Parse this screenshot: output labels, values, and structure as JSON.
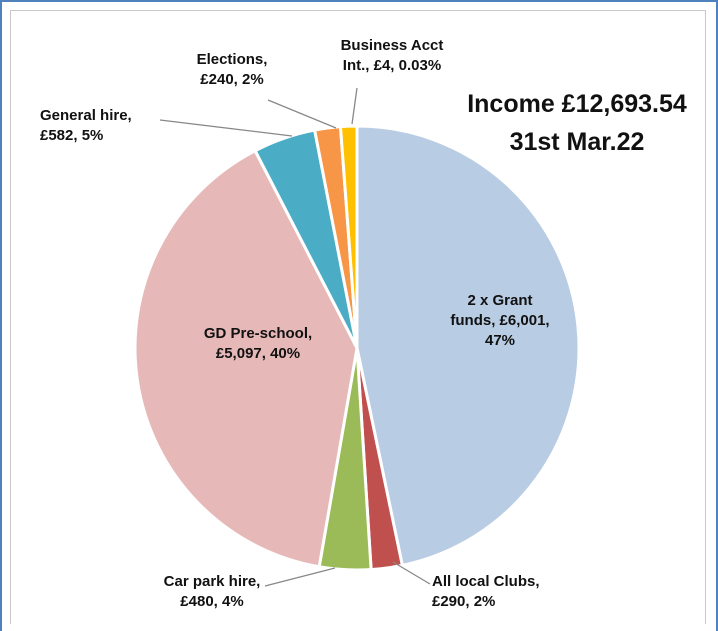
{
  "chart_data": {
    "type": "pie",
    "title_lines": [
      "Income £12,693.54",
      "31st Mar.22"
    ],
    "start_angle_deg": 0,
    "direction": "clockwise",
    "slices": [
      {
        "name": "2 x Grant funds",
        "value": 6001,
        "percent": "47%",
        "color": "#b8cce4",
        "label_lines": [
          "2 x Grant",
          "funds, £6,001,",
          "47%"
        ]
      },
      {
        "name": "All local Clubs",
        "value": 290,
        "percent": "2%",
        "color": "#c0504d",
        "label_lines": [
          "All local Clubs,",
          "£290, 2%"
        ]
      },
      {
        "name": "Car park hire",
        "value": 480,
        "percent": "4%",
        "color": "#9bbb59",
        "label_lines": [
          "Car park hire,",
          "£480, 4%"
        ]
      },
      {
        "name": "GD Pre-school",
        "value": 5097,
        "percent": "40%",
        "color": "#e6b9b8",
        "label_lines": [
          "GD Pre-school,",
          "£5,097, 40%"
        ]
      },
      {
        "name": "General hire",
        "value": 582,
        "percent": "5%",
        "color": "#4bacc6",
        "label_lines": [
          "General hire,",
          "£582, 5%"
        ]
      },
      {
        "name": "Elections",
        "value": 240,
        "percent": "2%",
        "color": "#f79646",
        "label_lines": [
          "Elections,",
          "£240, 2%"
        ]
      },
      {
        "name": "Business Acct Int.",
        "value": 4,
        "percent": "0.03%",
        "color": "#ffc000",
        "label_lines": [
          "Business Acct",
          "Int., £4, 0.03%"
        ]
      }
    ]
  }
}
